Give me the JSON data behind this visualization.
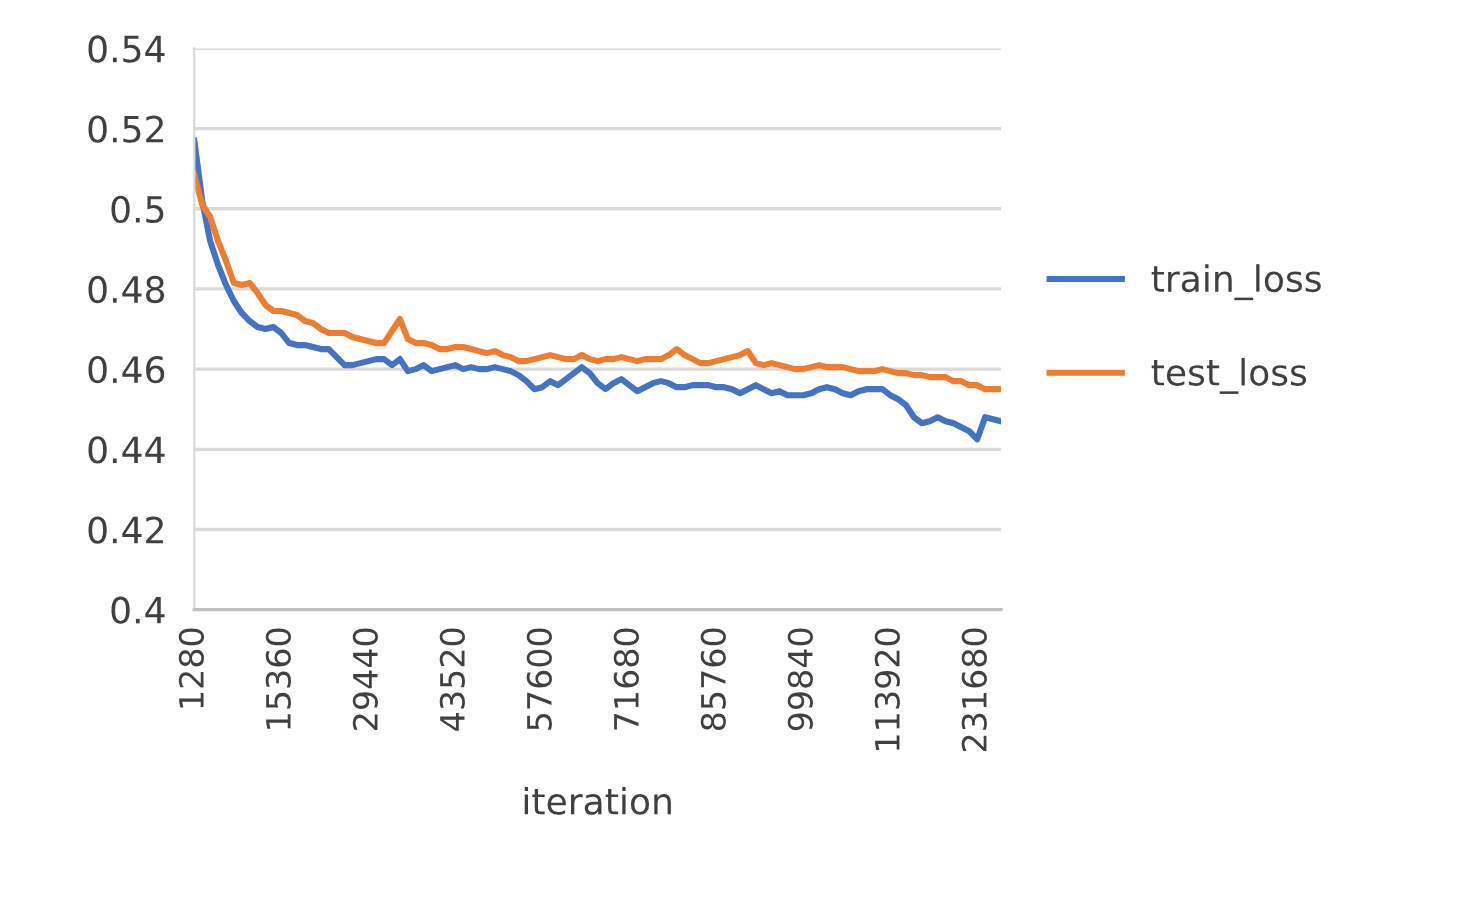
{
  "chart_data": {
    "type": "line",
    "xlabel": "iteration",
    "categories": [
      "1280",
      null,
      null,
      null,
      null,
      null,
      null,
      null,
      null,
      null,
      null,
      "15360",
      null,
      null,
      null,
      null,
      null,
      null,
      null,
      null,
      null,
      null,
      "29440",
      null,
      null,
      null,
      null,
      null,
      null,
      null,
      null,
      null,
      null,
      "43520",
      null,
      null,
      null,
      null,
      null,
      null,
      null,
      null,
      null,
      null,
      "57600",
      null,
      null,
      null,
      null,
      null,
      null,
      null,
      null,
      null,
      null,
      "71680",
      null,
      null,
      null,
      null,
      null,
      null,
      null,
      null,
      null,
      null,
      "85760",
      null,
      null,
      null,
      null,
      null,
      null,
      null,
      null,
      null,
      null,
      "99840",
      null,
      null,
      null,
      null,
      null,
      null,
      null,
      null,
      null,
      null,
      "113920",
      null,
      null,
      null,
      null,
      null,
      null,
      null,
      null,
      null,
      null,
      "231680",
      null,
      null,
      null
    ],
    "series": [
      {
        "name": "train_loss",
        "color": "#4472c4",
        "values": [
          0.517,
          0.502,
          0.492,
          0.486,
          0.481,
          0.477,
          0.474,
          0.472,
          0.4705,
          0.47,
          0.4705,
          0.469,
          0.4665,
          0.466,
          0.466,
          0.4655,
          0.465,
          0.465,
          0.463,
          0.461,
          0.461,
          0.4615,
          0.462,
          0.4625,
          0.4625,
          0.461,
          0.4625,
          0.4595,
          0.46,
          0.461,
          0.4595,
          0.46,
          0.4605,
          0.461,
          0.46,
          0.4605,
          0.46,
          0.46,
          0.4605,
          0.46,
          0.4595,
          0.4585,
          0.457,
          0.455,
          0.4555,
          0.457,
          0.456,
          0.4575,
          0.459,
          0.4605,
          0.459,
          0.4565,
          0.455,
          0.4565,
          0.4575,
          0.456,
          0.4545,
          0.4555,
          0.4565,
          0.457,
          0.4565,
          0.4555,
          0.4555,
          0.456,
          0.456,
          0.456,
          0.4555,
          0.4555,
          0.455,
          0.454,
          0.455,
          0.456,
          0.455,
          0.454,
          0.4545,
          0.4535,
          0.4535,
          0.4535,
          0.454,
          0.455,
          0.4555,
          0.455,
          0.454,
          0.4535,
          0.4545,
          0.455,
          0.455,
          0.455,
          0.4535,
          0.4525,
          0.451,
          0.448,
          0.4465,
          0.447,
          0.448,
          0.447,
          0.4465,
          0.4455,
          0.4445,
          0.4425,
          0.448,
          0.4475,
          0.447
        ]
      },
      {
        "name": "test_loss",
        "color": "#ed7d31",
        "values": [
          0.5085,
          0.501,
          0.498,
          0.492,
          0.487,
          0.4815,
          0.481,
          0.4815,
          0.479,
          0.476,
          0.4745,
          0.4745,
          0.474,
          0.4735,
          0.472,
          0.4715,
          0.47,
          0.469,
          0.469,
          0.469,
          0.468,
          0.4675,
          0.467,
          0.4665,
          0.4665,
          0.4695,
          0.4725,
          0.4675,
          0.4665,
          0.4665,
          0.466,
          0.465,
          0.465,
          0.4655,
          0.4655,
          0.465,
          0.4645,
          0.464,
          0.4645,
          0.4635,
          0.463,
          0.462,
          0.462,
          0.4625,
          0.463,
          0.4635,
          0.463,
          0.4625,
          0.4625,
          0.4635,
          0.4625,
          0.462,
          0.4625,
          0.4625,
          0.463,
          0.4625,
          0.462,
          0.4625,
          0.4625,
          0.4625,
          0.4635,
          0.465,
          0.4635,
          0.4625,
          0.4615,
          0.4615,
          0.462,
          0.4625,
          0.463,
          0.4635,
          0.4645,
          0.4615,
          0.461,
          0.4615,
          0.461,
          0.4605,
          0.46,
          0.46,
          0.4605,
          0.461,
          0.4605,
          0.4605,
          0.4605,
          0.46,
          0.4595,
          0.4595,
          0.4595,
          0.46,
          0.4595,
          0.459,
          0.459,
          0.4585,
          0.4585,
          0.458,
          0.458,
          0.458,
          0.457,
          0.457,
          0.456,
          0.456,
          0.455,
          0.455,
          0.455
        ]
      }
    ],
    "ylim": [
      0.4,
      0.54
    ],
    "yticks": [
      {
        "value": 0.4,
        "label": "0.4"
      },
      0.42,
      0.44,
      0.46,
      0.48,
      {
        "value": 0.5,
        "label": "0.5"
      },
      0.52,
      0.54
    ],
    "grid": "y",
    "legend": "right",
    "marker": "none",
    "line_style": "solid"
  }
}
